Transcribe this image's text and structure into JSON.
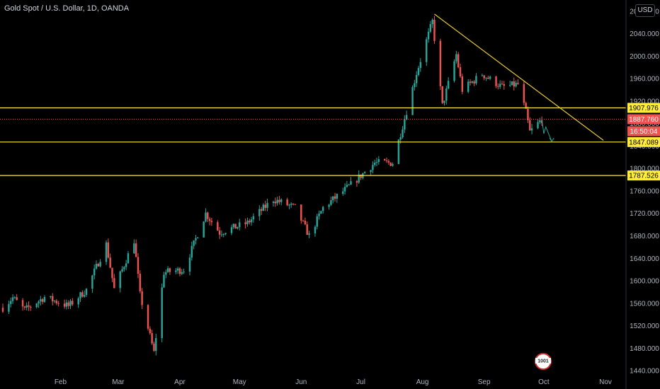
{
  "header": {
    "title": "Gold Spot / U.S. Dollar, 1D, OANDA",
    "currency": "USD"
  },
  "colors": {
    "background": "#000000",
    "up": "#26a69a",
    "down": "#ef5350",
    "level_line": "#ffeb3b",
    "trend_line": "#e5c92c",
    "current_price_line": "#ef5350",
    "axis_text": "#b2b5be"
  },
  "chart_data": {
    "type": "candlestick",
    "title": "Gold Spot / U.S. Dollar, 1D, OANDA",
    "ylim": [
      1430,
      2100
    ],
    "y_ticks": [
      "1440.000",
      "1480.000",
      "1520.000",
      "1560.000",
      "1600.000",
      "1640.000",
      "1680.000",
      "1720.000",
      "1760.000",
      "1800.000",
      "1840.000",
      "1880.000",
      "1920.000",
      "1960.000",
      "2000.000",
      "2040.000",
      "2080.000"
    ],
    "x_ticks": [
      "Feb",
      "Mar",
      "Apr",
      "May",
      "Jun",
      "Jul",
      "Aug",
      "Sep",
      "Oct",
      "Nov"
    ],
    "price_path": [
      [
        "2020-01-03",
        1552
      ],
      [
        "2020-01-08",
        1570
      ],
      [
        "2020-01-14",
        1548
      ],
      [
        "2020-01-24",
        1571
      ],
      [
        "2020-02-05",
        1555
      ],
      [
        "2020-02-14",
        1584
      ],
      [
        "2020-02-24",
        1665
      ],
      [
        "2020-02-28",
        1585
      ],
      [
        "2020-03-09",
        1672
      ],
      [
        "2020-03-12",
        1575
      ],
      [
        "2020-03-19",
        1472
      ],
      [
        "2020-03-24",
        1615
      ],
      [
        "2020-04-03",
        1620
      ],
      [
        "2020-04-14",
        1720
      ],
      [
        "2020-04-21",
        1686
      ],
      [
        "2020-05-05",
        1703
      ],
      [
        "2020-05-18",
        1745
      ],
      [
        "2020-05-29",
        1730
      ],
      [
        "2020-06-05",
        1680
      ],
      [
        "2020-06-12",
        1730
      ],
      [
        "2020-06-26",
        1771
      ],
      [
        "2020-07-08",
        1810
      ],
      [
        "2020-07-17",
        1810
      ],
      [
        "2020-07-24",
        1902
      ],
      [
        "2020-07-29",
        1970
      ],
      [
        "2020-08-06",
        2062
      ],
      [
        "2020-08-11",
        1912
      ],
      [
        "2020-08-18",
        2003
      ],
      [
        "2020-08-21",
        1940
      ],
      [
        "2020-08-31",
        1968
      ],
      [
        "2020-09-10",
        1945
      ],
      [
        "2020-09-18",
        1950
      ],
      [
        "2020-09-22",
        1900
      ],
      [
        "2020-09-24",
        1865
      ],
      [
        "2020-09-28",
        1880
      ],
      [
        "2020-09-30",
        1887.76
      ]
    ],
    "projection": [
      [
        "2020-09-30",
        1887.76
      ],
      [
        "2020-10-01",
        1862
      ],
      [
        "2020-10-02",
        1874
      ],
      [
        "2020-10-05",
        1848
      ]
    ],
    "levels": [
      {
        "label": "1907.976",
        "value": 1907.976
      },
      {
        "label": "1847.089",
        "value": 1847.089
      },
      {
        "label": "1787.526",
        "value": 1787.526
      }
    ],
    "trendline": [
      [
        "2020-08-07",
        2075
      ],
      [
        "2020-10-31",
        1850
      ]
    ],
    "current_price": {
      "label": "1887.760",
      "value": 1887.76,
      "countdown": "16:50:04"
    }
  },
  "logo_text": "1001"
}
